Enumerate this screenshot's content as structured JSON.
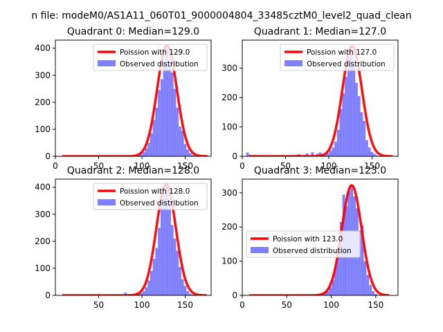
{
  "suptitle": "n file: modeM0/AS1A11_060T01_9000004804_33485cztM0_level2_quad_clean",
  "colors": {
    "poisson": "#ff0000",
    "observed": "#8080ff",
    "axes": "#000000",
    "background": "#ffffff"
  },
  "chart_data": [
    {
      "type": "bar",
      "title": "Quadrant 0: Median=129.0",
      "xlabel": "",
      "ylabel": "",
      "xlim": [
        0,
        180
      ],
      "ylim": [
        0,
        430
      ],
      "xticks": [
        "0",
        "50",
        "100",
        "150"
      ],
      "xtick_values": [
        0,
        50,
        100,
        150
      ],
      "yticks": [
        "0",
        "100",
        "200",
        "300",
        "400"
      ],
      "ytick_values": [
        0,
        100,
        200,
        300,
        400
      ],
      "legend_position": "upper right",
      "bin_width": 3,
      "legend": [
        "Poission with 129.0",
        "Observed distribution"
      ],
      "poisson_mean": 129.0,
      "poisson_peak": 410,
      "poisson_sigma": 11.4,
      "poisson_range": [
        8,
        176
      ],
      "observed": [
        {
          "x": 78,
          "y": 2
        },
        {
          "x": 87,
          "y": 3
        },
        {
          "x": 96,
          "y": 4
        },
        {
          "x": 99,
          "y": 8
        },
        {
          "x": 102,
          "y": 15
        },
        {
          "x": 105,
          "y": 30
        },
        {
          "x": 108,
          "y": 50
        },
        {
          "x": 111,
          "y": 85
        },
        {
          "x": 114,
          "y": 135
        },
        {
          "x": 117,
          "y": 180
        },
        {
          "x": 120,
          "y": 245
        },
        {
          "x": 123,
          "y": 285
        },
        {
          "x": 126,
          "y": 355
        },
        {
          "x": 129,
          "y": 410
        },
        {
          "x": 132,
          "y": 355
        },
        {
          "x": 135,
          "y": 310
        },
        {
          "x": 138,
          "y": 250
        },
        {
          "x": 141,
          "y": 180
        },
        {
          "x": 144,
          "y": 110
        },
        {
          "x": 147,
          "y": 95
        },
        {
          "x": 150,
          "y": 45
        },
        {
          "x": 153,
          "y": 25
        },
        {
          "x": 156,
          "y": 12
        },
        {
          "x": 159,
          "y": 5
        }
      ]
    },
    {
      "type": "bar",
      "title": "Quadrant 1: Median=127.0",
      "xlabel": "",
      "ylabel": "",
      "xlim": [
        0,
        180
      ],
      "ylim": [
        0,
        395
      ],
      "xticks": [
        "0",
        "50",
        "100",
        "150"
      ],
      "xtick_values": [
        0,
        50,
        100,
        150
      ],
      "yticks": [
        "0",
        "100",
        "200",
        "300"
      ],
      "ytick_values": [
        0,
        100,
        200,
        300
      ],
      "legend_position": "upper right",
      "bin_width": 3,
      "legend": [
        "Poission with 127.0",
        "Observed distribution"
      ],
      "poisson_mean": 127.0,
      "poisson_peak": 375,
      "poisson_sigma": 11.3,
      "poisson_range": [
        8,
        174
      ],
      "observed": [
        {
          "x": 6,
          "y": 13
        },
        {
          "x": 9,
          "y": 6
        },
        {
          "x": 15,
          "y": 5
        },
        {
          "x": 24,
          "y": 3
        },
        {
          "x": 33,
          "y": 4
        },
        {
          "x": 45,
          "y": 4
        },
        {
          "x": 57,
          "y": 4
        },
        {
          "x": 63,
          "y": 6
        },
        {
          "x": 66,
          "y": 7
        },
        {
          "x": 72,
          "y": 5
        },
        {
          "x": 75,
          "y": 10
        },
        {
          "x": 81,
          "y": 14
        },
        {
          "x": 87,
          "y": 9
        },
        {
          "x": 90,
          "y": 13
        },
        {
          "x": 93,
          "y": 8
        },
        {
          "x": 96,
          "y": 5
        },
        {
          "x": 99,
          "y": 10
        },
        {
          "x": 102,
          "y": 20
        },
        {
          "x": 105,
          "y": 30
        },
        {
          "x": 108,
          "y": 50
        },
        {
          "x": 111,
          "y": 90
        },
        {
          "x": 114,
          "y": 160
        },
        {
          "x": 117,
          "y": 215
        },
        {
          "x": 120,
          "y": 270
        },
        {
          "x": 123,
          "y": 330
        },
        {
          "x": 126,
          "y": 375
        },
        {
          "x": 129,
          "y": 330
        },
        {
          "x": 132,
          "y": 250
        },
        {
          "x": 135,
          "y": 205
        },
        {
          "x": 138,
          "y": 150
        },
        {
          "x": 141,
          "y": 120
        },
        {
          "x": 144,
          "y": 55
        },
        {
          "x": 147,
          "y": 30
        },
        {
          "x": 150,
          "y": 15
        },
        {
          "x": 153,
          "y": 8
        },
        {
          "x": 156,
          "y": 3
        }
      ]
    },
    {
      "type": "bar",
      "title": "Quadrant 2: Median=128.0",
      "xlabel": "",
      "ylabel": "",
      "xlim": [
        0,
        180
      ],
      "ylim": [
        0,
        430
      ],
      "xticks": [
        "50",
        "100",
        "150"
      ],
      "xtick_values": [
        50,
        100,
        150
      ],
      "yticks": [
        "0",
        "100",
        "200",
        "300",
        "400"
      ],
      "ytick_values": [
        0,
        100,
        200,
        300,
        400
      ],
      "legend_position": "upper right",
      "bin_width": 3,
      "legend": [
        "Poission with 128.0",
        "Observed distribution"
      ],
      "poisson_mean": 128.0,
      "poisson_peak": 410,
      "poisson_sigma": 11.3,
      "poisson_range": [
        8,
        175
      ],
      "observed": [
        {
          "x": 81,
          "y": 10
        },
        {
          "x": 90,
          "y": 3
        },
        {
          "x": 96,
          "y": 5
        },
        {
          "x": 99,
          "y": 8
        },
        {
          "x": 102,
          "y": 15
        },
        {
          "x": 105,
          "y": 30
        },
        {
          "x": 108,
          "y": 55
        },
        {
          "x": 111,
          "y": 90
        },
        {
          "x": 114,
          "y": 135
        },
        {
          "x": 117,
          "y": 175
        },
        {
          "x": 120,
          "y": 250
        },
        {
          "x": 123,
          "y": 330
        },
        {
          "x": 126,
          "y": 380
        },
        {
          "x": 129,
          "y": 405
        },
        {
          "x": 132,
          "y": 350
        },
        {
          "x": 135,
          "y": 260
        },
        {
          "x": 138,
          "y": 210
        },
        {
          "x": 141,
          "y": 165
        },
        {
          "x": 144,
          "y": 105
        },
        {
          "x": 147,
          "y": 60
        },
        {
          "x": 150,
          "y": 35
        },
        {
          "x": 153,
          "y": 15
        },
        {
          "x": 156,
          "y": 6
        },
        {
          "x": 159,
          "y": 3
        }
      ]
    },
    {
      "type": "bar",
      "title": "Quadrant 3: Median=123.0",
      "xlabel": "",
      "ylabel": "",
      "xlim": [
        0,
        175
      ],
      "ylim": [
        0,
        340
      ],
      "xticks": [
        "0",
        "50",
        "100",
        "150"
      ],
      "xtick_values": [
        0,
        50,
        100,
        150
      ],
      "yticks": [
        "0",
        "100",
        "200",
        "300"
      ],
      "ytick_values": [
        0,
        100,
        200,
        300
      ],
      "legend_position": "center left",
      "bin_width": 3,
      "legend": [
        "Poission with 123.0",
        "Observed distribution"
      ],
      "poisson_mean": 123.0,
      "poisson_peak": 322,
      "poisson_sigma": 11.1,
      "poisson_range": [
        8,
        165
      ],
      "observed": [
        {
          "x": 45,
          "y": 2
        },
        {
          "x": 60,
          "y": 3
        },
        {
          "x": 69,
          "y": 2
        },
        {
          "x": 78,
          "y": 3
        },
        {
          "x": 87,
          "y": 4
        },
        {
          "x": 93,
          "y": 6
        },
        {
          "x": 96,
          "y": 12
        },
        {
          "x": 99,
          "y": 25
        },
        {
          "x": 102,
          "y": 45
        },
        {
          "x": 105,
          "y": 85
        },
        {
          "x": 108,
          "y": 150
        },
        {
          "x": 111,
          "y": 215
        },
        {
          "x": 114,
          "y": 295
        },
        {
          "x": 117,
          "y": 260
        },
        {
          "x": 120,
          "y": 305
        },
        {
          "x": 123,
          "y": 320
        },
        {
          "x": 126,
          "y": 290
        },
        {
          "x": 129,
          "y": 255
        },
        {
          "x": 132,
          "y": 190
        },
        {
          "x": 135,
          "y": 205
        },
        {
          "x": 138,
          "y": 100
        },
        {
          "x": 141,
          "y": 60
        },
        {
          "x": 144,
          "y": 30
        },
        {
          "x": 147,
          "y": 12
        },
        {
          "x": 150,
          "y": 4
        }
      ]
    }
  ]
}
